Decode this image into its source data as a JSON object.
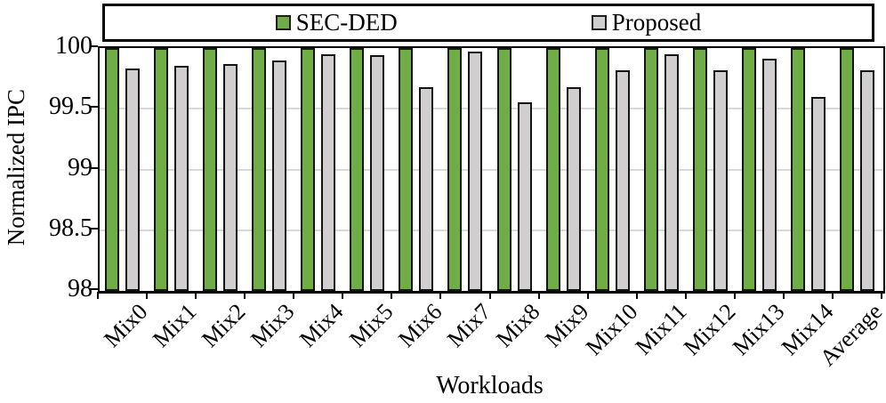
{
  "chart_data": {
    "type": "bar",
    "title": "",
    "xlabel": "Workloads",
    "ylabel": "Normalized IPC",
    "ylim": [
      98,
      100
    ],
    "yticks": [
      100,
      99.5,
      99,
      98.5,
      98
    ],
    "ytick_labels": [
      "100",
      "99.5",
      "99",
      "98.5",
      "98"
    ],
    "grid": "horizontal",
    "gridline_values": [
      99.5,
      99,
      98.5
    ],
    "legend_position": "top",
    "categories": [
      "Mix0",
      "Mix1",
      "Mix2",
      "Mix3",
      "Mix4",
      "Mix5",
      "Mix6",
      "Mix7",
      "Mix8",
      "Mix9",
      "Mix10",
      "Mix11",
      "Mix12",
      "Mix13",
      "Mix14",
      "Average"
    ],
    "series": [
      {
        "name": "SEC-DED",
        "color": "#70ad47",
        "values": [
          100,
          100,
          100,
          100,
          100,
          100,
          100,
          100,
          100,
          100,
          100,
          100,
          100,
          100,
          100,
          100
        ]
      },
      {
        "name": "Proposed",
        "color": "#d0cece",
        "values": [
          99.83,
          99.85,
          99.87,
          99.9,
          99.95,
          99.94,
          99.68,
          99.97,
          99.55,
          99.68,
          99.82,
          99.95,
          99.82,
          99.91,
          99.6,
          99.82
        ]
      }
    ]
  },
  "colors": {
    "bar_border": "#141414",
    "axis": "#000000",
    "gridline": "#d9d9d9",
    "background": "#ffffff",
    "legend_border": "#000000"
  }
}
